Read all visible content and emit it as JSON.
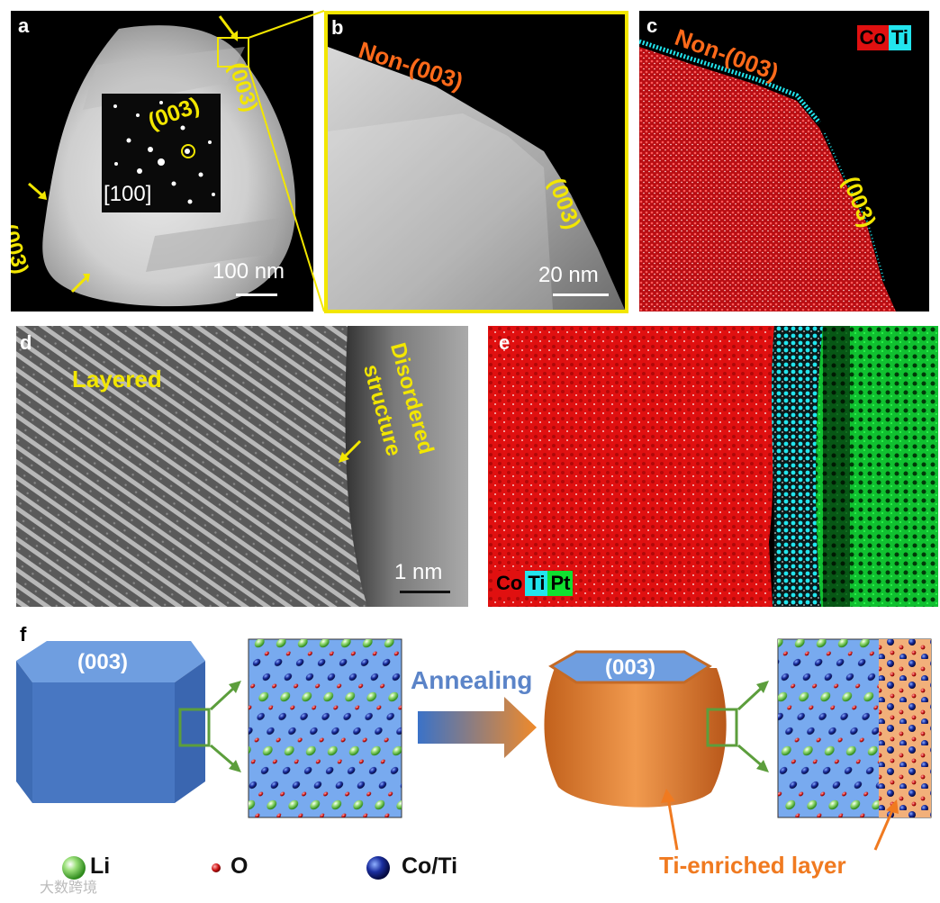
{
  "panels": {
    "a": {
      "label": "a",
      "facet_top": "(003)",
      "facet_left": "(003)",
      "saed_spot": "(003)",
      "zone_axis": "[100]",
      "scale": "100 nm"
    },
    "b": {
      "label": "b",
      "non_facet": "Non-(003)",
      "facet": "(003)",
      "scale": "20 nm"
    },
    "c": {
      "label": "c",
      "non_facet": "Non-(003)",
      "facet": "(003)",
      "legend": [
        "Co",
        "Ti"
      ]
    },
    "d": {
      "label": "d",
      "layered": "Layered",
      "disordered_line1": "Disordered",
      "disordered_line2": "structure",
      "scale": "1 nm"
    },
    "e": {
      "label": "e",
      "legend": [
        "Co",
        "Ti",
        "Pt"
      ]
    },
    "f": {
      "label": "f",
      "facet_left": "(003)",
      "facet_right": "(003)",
      "process": "Annealing",
      "ti_layer": "Ti-enriched layer",
      "legend": {
        "li": "Li",
        "o": "O",
        "coti": "Co/Ti"
      }
    }
  },
  "watermark": "大数跨境",
  "colors": {
    "yellow_label": "#f2e600",
    "orange_label": "#ff6a1a",
    "co_map": "#e01010",
    "ti_map": "#22e5ee",
    "pt_map": "#10e030",
    "crystal_blue": "#4f81c7",
    "crystal_orange": "#e98a3a"
  }
}
